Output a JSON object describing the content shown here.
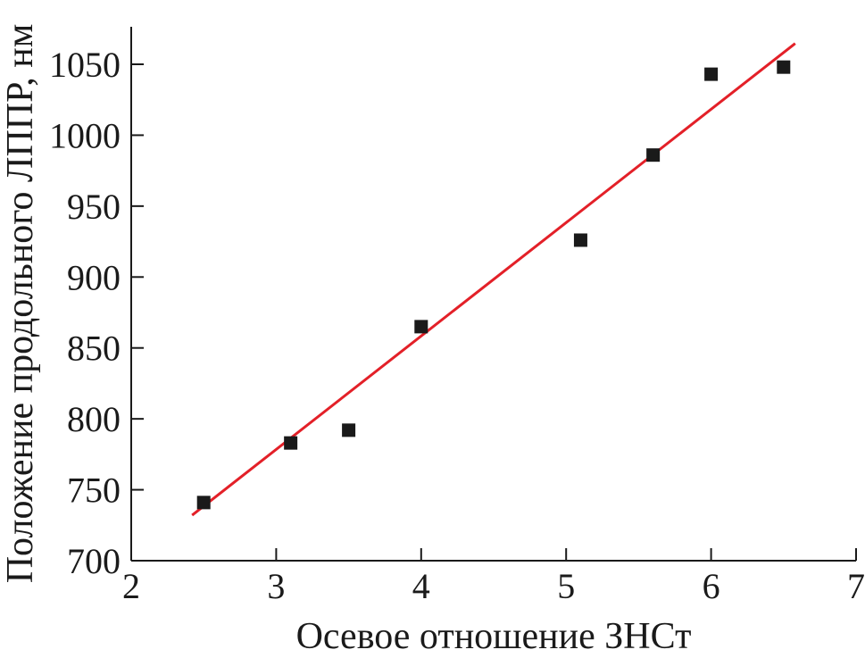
{
  "chart_data": {
    "type": "scatter",
    "xlabel": "Осевое отношение ЗНСт",
    "ylabel": "Положение продольного ЛППР, нм",
    "xlim": [
      2,
      7
    ],
    "ylim": [
      700,
      1075
    ],
    "x_ticks": [
      2,
      3,
      4,
      5,
      6,
      7
    ],
    "y_ticks": [
      700,
      750,
      800,
      850,
      900,
      950,
      1000,
      1050
    ],
    "grid": false,
    "series": [
      {
        "marker": "square",
        "color": "#1a1a1a",
        "points": [
          {
            "x": 2.5,
            "y": 741
          },
          {
            "x": 3.1,
            "y": 783
          },
          {
            "x": 3.5,
            "y": 792
          },
          {
            "x": 4.0,
            "y": 865
          },
          {
            "x": 5.1,
            "y": 926
          },
          {
            "x": 5.6,
            "y": 986
          },
          {
            "x": 6.0,
            "y": 1043
          },
          {
            "x": 6.5,
            "y": 1048
          }
        ]
      }
    ],
    "fit_line": {
      "color": "#e32028",
      "x_range": [
        2.42,
        6.58
      ],
      "slope": 79.95,
      "intercept": 538.6
    }
  }
}
